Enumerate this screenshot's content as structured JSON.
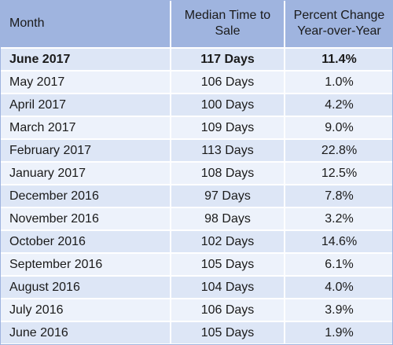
{
  "table": {
    "headers": {
      "month": "Month",
      "median": "Median Time to Sale",
      "pct_line1": "Percent Change",
      "pct_line2": "Year-over-Year"
    },
    "rows": [
      {
        "month": "June 2017",
        "median": "117 Days",
        "pct": "11.4%",
        "featured": true
      },
      {
        "month": "May 2017",
        "median": "106 Days",
        "pct": "1.0%"
      },
      {
        "month": "April 2017",
        "median": "100 Days",
        "pct": "4.2%"
      },
      {
        "month": "March 2017",
        "median": "109 Days",
        "pct": "9.0%"
      },
      {
        "month": "February 2017",
        "median": "113 Days",
        "pct": "22.8%"
      },
      {
        "month": "January 2017",
        "median": "108 Days",
        "pct": "12.5%"
      },
      {
        "month": "December 2016",
        "median": "97 Days",
        "pct": "7.8%"
      },
      {
        "month": "November 2016",
        "median": "98 Days",
        "pct": "3.2%"
      },
      {
        "month": "October 2016",
        "median": "102 Days",
        "pct": "14.6%"
      },
      {
        "month": "September 2016",
        "median": "105 Days",
        "pct": "6.1%"
      },
      {
        "month": "August 2016",
        "median": "104 Days",
        "pct": "4.0%"
      },
      {
        "month": "July 2016",
        "median": "106 Days",
        "pct": "3.9%"
      },
      {
        "month": "June 2016",
        "median": "105 Days",
        "pct": "1.9%"
      }
    ]
  },
  "colors": {
    "header_bg": "#9fb4df",
    "row_odd_bg": "#dde6f6",
    "row_even_bg": "#edf2fb"
  }
}
